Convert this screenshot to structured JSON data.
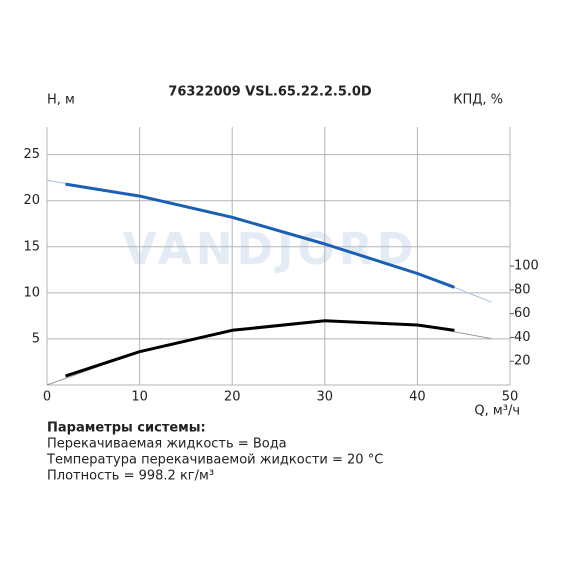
{
  "chart_data": {
    "type": "line",
    "title": "76322009 VSL.65.22.2.5.0D",
    "y_label": "H, м",
    "y2_label": "КПД, %",
    "x_label": "Q, м³/ч",
    "watermark": "VANDJORD",
    "xlim": [
      0,
      50
    ],
    "xticks": [
      0,
      10,
      20,
      30,
      40,
      50
    ],
    "ylim": [
      0,
      28
    ],
    "yticks": [
      5,
      10,
      15,
      20,
      25
    ],
    "y2lim": [
      0,
      217
    ],
    "y2ticks": [
      20,
      40,
      60,
      80,
      100
    ],
    "grid": true,
    "series": [
      {
        "color": "#a8c4e6",
        "line_width": 1,
        "x": [
          0,
          10,
          20,
          30,
          40,
          48
        ],
        "values": [
          22.2,
          20.6,
          18.3,
          15.4,
          12.2,
          9.0
        ]
      },
      {
        "color": "#9a9a9a",
        "line_width": 1,
        "axis": "y2",
        "x": [
          0,
          10,
          20,
          30,
          40,
          48
        ],
        "values": [
          0,
          28,
          46,
          54,
          50.5,
          39
        ]
      },
      {
        "color": "#1a5fb4",
        "line_width": 3,
        "x": [
          2,
          10,
          20,
          30,
          40,
          44
        ],
        "values": [
          21.8,
          20.5,
          18.2,
          15.3,
          12.1,
          10.6
        ]
      },
      {
        "color": "#000000",
        "line_width": 3,
        "axis": "y2",
        "x": [
          2,
          10,
          20,
          30,
          40,
          44
        ],
        "values": [
          7.6,
          28,
          46,
          54,
          50.5,
          46
        ]
      }
    ]
  },
  "parameters": {
    "title": "Параметры системы:",
    "lines": [
      "Перекачиваемая жидкость = Вода",
      "Температура перекачиваемой жидкости = 20 °C",
      "Плотность = 998.2 кг/м³"
    ]
  }
}
